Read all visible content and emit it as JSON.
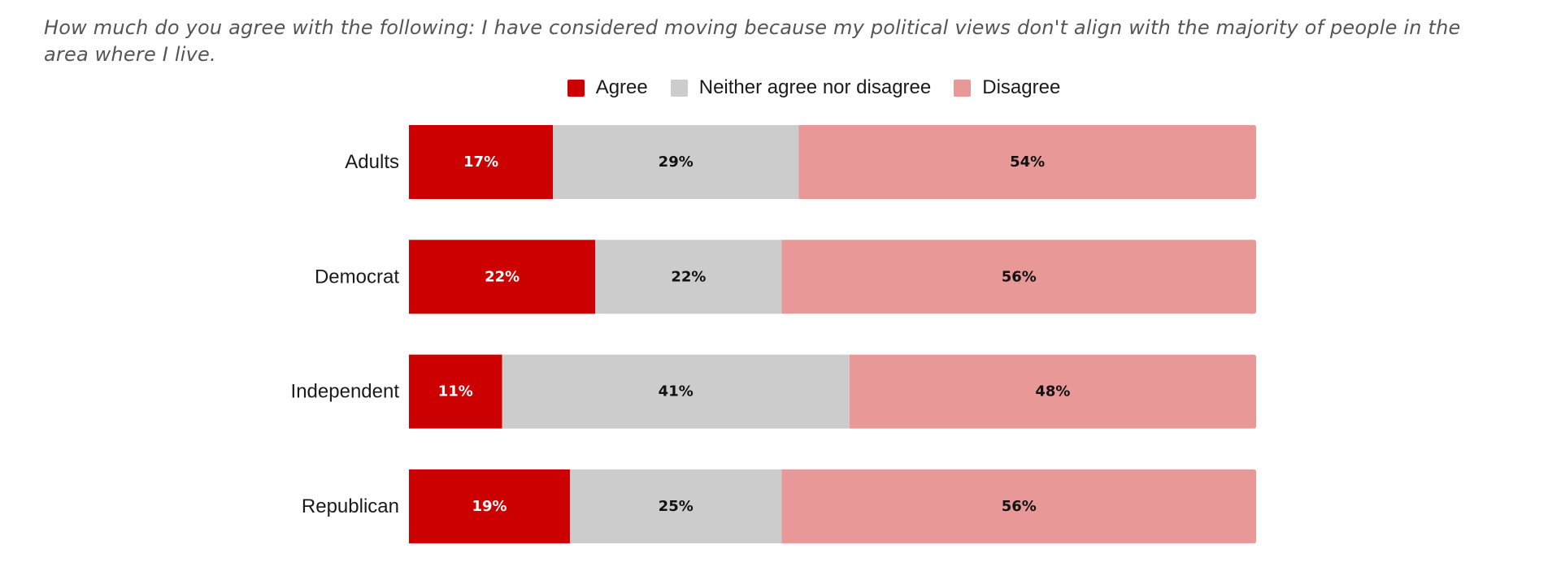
{
  "chart_data": {
    "type": "bar",
    "orientation": "horizontal",
    "stacked": true,
    "normalized": true,
    "title": "How much do you agree with the following: I have considered moving because my political views don't align with the majority of people in the area where I live.",
    "xlabel": "",
    "ylabel": "",
    "xlim": [
      0,
      100
    ],
    "grid": false,
    "legend_position": "top-center",
    "categories": [
      "Adults",
      "Democrat",
      "Independent",
      "Republican"
    ],
    "series": [
      {
        "name": "Agree",
        "color": "#cc0000",
        "label_color": "#ffffff",
        "values": [
          17,
          22,
          11,
          19
        ],
        "labels": [
          "17%",
          "22%",
          "11%",
          "19%"
        ]
      },
      {
        "name": "Neither agree nor disagree",
        "color": "#cccccc",
        "label_color": "#111111",
        "values": [
          29,
          22,
          41,
          25
        ],
        "labels": [
          "29%",
          "22%",
          "41%",
          "25%"
        ]
      },
      {
        "name": "Disagree",
        "color": "#e99898",
        "label_color": "#111111",
        "values": [
          54,
          56,
          48,
          56
        ],
        "labels": [
          "54%",
          "56%",
          "48%",
          "56%"
        ]
      }
    ]
  }
}
